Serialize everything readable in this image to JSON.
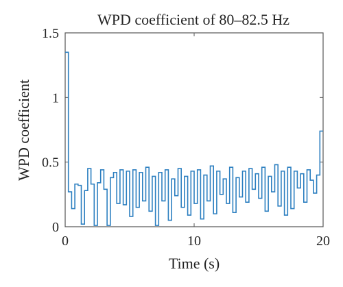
{
  "chart_data": {
    "type": "line",
    "title": "WPD coefficient of 80–82.5 Hz",
    "xlabel": "Time (s)",
    "ylabel": "WPD coefficient",
    "xlim": [
      0,
      20
    ],
    "ylim": [
      0,
      1.5
    ],
    "xticks": [
      0,
      10,
      20
    ],
    "yticks": [
      0,
      0.5,
      1,
      1.5
    ],
    "xtick_labels": [
      "0",
      "10",
      "20"
    ],
    "ytick_labels": [
      "0",
      "0.5",
      "1",
      "1.5"
    ],
    "grid": false,
    "line_color": "#2c7fc0",
    "step": "post",
    "series": [
      {
        "x": [
          0,
          0.25,
          0.5,
          0.75,
          1.0,
          1.25,
          1.5,
          1.75,
          2.0,
          2.25,
          2.5,
          2.75,
          3.0,
          3.25,
          3.5,
          3.75,
          4.0,
          4.25,
          4.5,
          4.75,
          5.0,
          5.25,
          5.5,
          5.75,
          6.0,
          6.25,
          6.5,
          6.75,
          7.0,
          7.25,
          7.5,
          7.75,
          8.0,
          8.25,
          8.5,
          8.75,
          9.0,
          9.25,
          9.5,
          9.75,
          10.0,
          10.25,
          10.5,
          10.75,
          11.0,
          11.25,
          11.5,
          11.75,
          12.0,
          12.25,
          12.5,
          12.75,
          13.0,
          13.25,
          13.5,
          13.75,
          14.0,
          14.25,
          14.5,
          14.75,
          15.0,
          15.25,
          15.5,
          15.75,
          16.0,
          16.25,
          16.5,
          16.75,
          17.0,
          17.25,
          17.5,
          17.75,
          18.0,
          18.25,
          18.5,
          18.75,
          19.0,
          19.25,
          19.5,
          19.75,
          20.0
        ],
        "values": [
          1.35,
          0.27,
          0.14,
          0.33,
          0.32,
          0.02,
          0.28,
          0.45,
          0.33,
          0.01,
          0.34,
          0.44,
          0.29,
          0.01,
          0.38,
          0.42,
          0.18,
          0.44,
          0.17,
          0.43,
          0.08,
          0.44,
          0.15,
          0.42,
          0.2,
          0.46,
          0.12,
          0.39,
          0.01,
          0.42,
          0.2,
          0.44,
          0.05,
          0.37,
          0.24,
          0.45,
          0.15,
          0.39,
          0.09,
          0.43,
          0.18,
          0.44,
          0.06,
          0.4,
          0.2,
          0.47,
          0.1,
          0.43,
          0.25,
          0.37,
          0.18,
          0.46,
          0.11,
          0.38,
          0.23,
          0.43,
          0.19,
          0.45,
          0.29,
          0.41,
          0.22,
          0.46,
          0.12,
          0.39,
          0.27,
          0.48,
          0.16,
          0.43,
          0.09,
          0.46,
          0.14,
          0.43,
          0.3,
          0.41,
          0.19,
          0.44,
          0.36,
          0.26,
          0.4,
          0.74,
          0.74
        ]
      }
    ]
  }
}
